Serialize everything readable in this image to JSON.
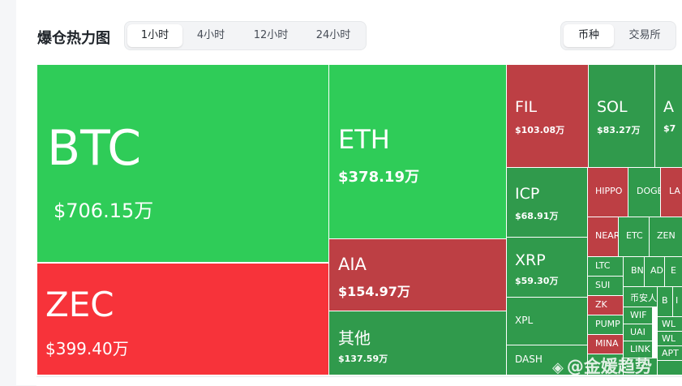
{
  "header": {
    "title": "爆仓热力图",
    "time_tabs": [
      "1小时",
      "4小时",
      "12小时",
      "24小时"
    ],
    "active_time_tab": "1小时",
    "view_tabs": [
      "币种",
      "交易所"
    ],
    "active_view_tab": "币种"
  },
  "colors": {
    "long_bright": "#2fcc58",
    "long_dark": "#309a4c",
    "short_bright": "#f7333a",
    "short_dark": "#bd3f44",
    "page_bg": "#f5f6f8",
    "text": "#1e2329"
  },
  "tiles": [
    {
      "symbol": "BTC",
      "amount": "$706.15万"
    },
    {
      "symbol": "ZEC",
      "amount": "$399.40万"
    },
    {
      "symbol": "ETH",
      "amount": "$378.19万"
    },
    {
      "symbol": "AIA",
      "amount": "$154.97万"
    },
    {
      "symbol": "其他",
      "amount": "$137.59万"
    },
    {
      "symbol": "FIL",
      "amount": "$103.08万"
    },
    {
      "symbol": "SOL",
      "amount": "$83.27万"
    },
    {
      "symbol": "A",
      "amount": "$7"
    },
    {
      "symbol": "ICP",
      "amount": "$68.91万"
    },
    {
      "symbol": "XRP",
      "amount": "$59.30万"
    },
    {
      "symbol": "XPL",
      "amount": ""
    },
    {
      "symbol": "DASH",
      "amount": ""
    },
    {
      "symbol": "HIPPO",
      "amount": ""
    },
    {
      "symbol": "DOGE",
      "amount": ""
    },
    {
      "symbol": "LA",
      "amount": ""
    },
    {
      "symbol": "NEAR",
      "amount": ""
    },
    {
      "symbol": "ETC",
      "amount": ""
    },
    {
      "symbol": "ZEN",
      "amount": ""
    },
    {
      "symbol": "LTC",
      "amount": ""
    },
    {
      "symbol": "BN",
      "amount": ""
    },
    {
      "symbol": "AD",
      "amount": ""
    },
    {
      "symbol": "E",
      "amount": ""
    },
    {
      "symbol": "SUI",
      "amount": ""
    },
    {
      "symbol": "币安人生",
      "amount": ""
    },
    {
      "symbol": "B",
      "amount": ""
    },
    {
      "symbol": "I",
      "amount": ""
    },
    {
      "symbol": "ZK",
      "amount": ""
    },
    {
      "symbol": "WIF",
      "amount": ""
    },
    {
      "symbol": "WL",
      "amount": ""
    },
    {
      "symbol": "PUMP",
      "amount": ""
    },
    {
      "symbol": "UAI",
      "amount": ""
    },
    {
      "symbol": "WL",
      "amount": ""
    },
    {
      "symbol": "MINA",
      "amount": ""
    },
    {
      "symbol": "LINK",
      "amount": ""
    },
    {
      "symbol": "APT",
      "amount": ""
    }
  ],
  "watermark": "@金媛趋势"
}
